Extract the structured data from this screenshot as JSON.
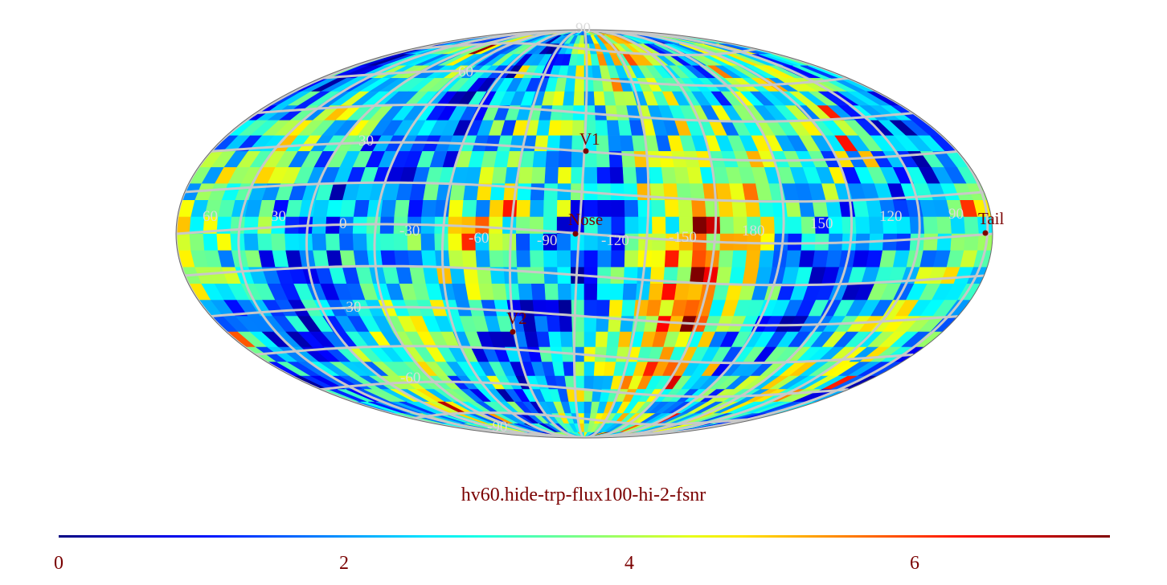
{
  "map": {
    "projection": "mollweide",
    "grid_color": "#c8c8c8",
    "colormap": "jet",
    "lat_labels": {
      "n90": "90",
      "n60": "60",
      "n30": "30",
      "s30": "-30",
      "s60": "-60",
      "s90": "-90"
    },
    "lon_labels": [
      "60",
      "30",
      "0",
      "-30",
      "-60",
      "-90",
      "-120",
      "-150",
      "180",
      "150",
      "120",
      "90"
    ],
    "markers": [
      {
        "label": "V1"
      },
      {
        "label": "Nose"
      },
      {
        "label": "Tail"
      },
      {
        "label": "V2"
      }
    ],
    "marker_color": "#7a0000"
  },
  "caption": "hv60.hide-trp-flux100-hi-2-fsnr",
  "colorbar": {
    "range": [
      0,
      7.4
    ],
    "ticks": [
      "0",
      "2",
      "4",
      "6"
    ]
  }
}
